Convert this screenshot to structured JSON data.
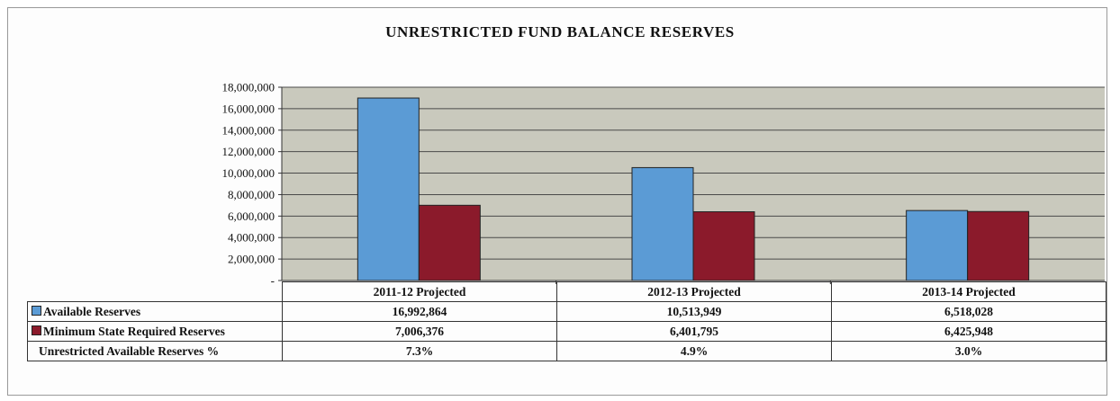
{
  "chart_data": {
    "type": "bar",
    "title": "UNRESTRICTED  FUND BALANCE RESERVES",
    "categories": [
      "2011-12 Projected",
      "2012-13 Projected",
      "2013-14 Projected"
    ],
    "series": [
      {
        "name": "Available Reserves",
        "color": "#5b9bd5",
        "values": [
          16992864,
          10513949,
          6518028
        ],
        "labels": [
          "16,992,864",
          "10,513,949",
          "6,518,028"
        ]
      },
      {
        "name": "Minimum State Required Reserves",
        "color": "#8b1a2b",
        "values": [
          7006376,
          6401795,
          6425948
        ],
        "labels": [
          "7,006,376",
          "6,401,795",
          "6,425,948"
        ]
      }
    ],
    "extra_row": {
      "name": "Unrestricted Available Reserves %",
      "values": [
        "7.3%",
        "4.9%",
        "3.0%"
      ]
    },
    "ylim": [
      0,
      18000000
    ],
    "yticks": [
      0,
      2000000,
      4000000,
      6000000,
      8000000,
      10000000,
      12000000,
      14000000,
      16000000,
      18000000
    ],
    "ytick_labels": [
      "-",
      "2,000,000",
      "4,000,000",
      "6,000,000",
      "8,000,000",
      "10,000,000",
      "12,000,000",
      "14,000,000",
      "16,000,000",
      "18,000,000"
    ],
    "plot_background": "#c9c9bd",
    "grid": true,
    "legend": "table"
  }
}
